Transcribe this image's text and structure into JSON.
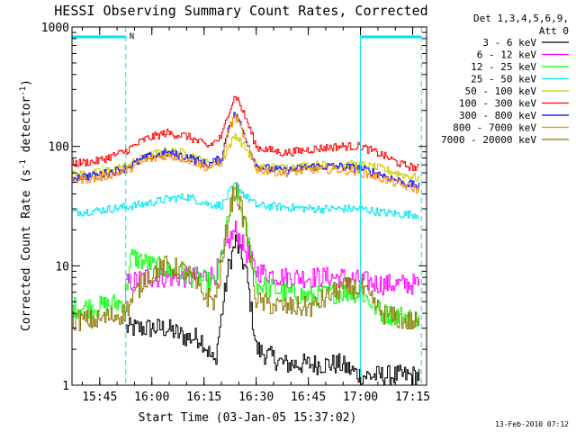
{
  "chart_data": {
    "type": "line",
    "title": "HESSI Observing Summary Count Rates, Corrected",
    "xlabel": "Start Time (03-Jan-05 15:37:02)",
    "ylabel_main": "Corrected Count Rate (s",
    "ylabel_sup1": "-1",
    "ylabel_mid": " detector",
    "ylabel_sup2": "-1",
    "ylabel_end": ")",
    "y_scale": "log",
    "ylim": [
      1,
      1000
    ],
    "xlim": [
      "15:37:02",
      "17:19:00"
    ],
    "x_ticks": [
      "15:45",
      "16:00",
      "16:15",
      "16:30",
      "16:45",
      "17:00",
      "17:15"
    ],
    "y_ticks": [
      "1",
      "10",
      "100",
      "1000"
    ],
    "legend_header": [
      "Det 1,3,4,5,6,9,",
      "Att 0"
    ],
    "legend_position": "right-outside",
    "footer_date": "13-Feb-2010 07:12",
    "night_marker_label": "N",
    "attenuator_bars": [
      [
        "15:37:02",
        "15:52:30"
      ],
      [
        "17:00:00",
        "17:17:30"
      ]
    ],
    "solid_vertical_lines": [
      "17:00:00"
    ],
    "dashed_vertical_lines": [
      "15:52:30",
      "17:17:30"
    ],
    "colors": {
      "axis": "#000000",
      "markers": "#00e5ee"
    },
    "series": [
      {
        "name": "3 - 6 keV",
        "color": "#000000",
        "x": [
          "15:52:30",
          "15:58",
          "16:04",
          "16:10",
          "16:14",
          "16:18",
          "16:20",
          "16:22",
          "16:24",
          "16:27",
          "16:30",
          "16:38",
          "16:46",
          "16:54",
          "17:00",
          "17:06",
          "17:12",
          "17:17"
        ],
        "values": [
          3,
          3,
          3,
          2.5,
          2.5,
          1.5,
          4,
          10,
          16,
          9,
          2,
          1.5,
          1.5,
          1.5,
          1.2,
          1.2,
          1.2,
          1.2
        ]
      },
      {
        "name": "6 - 12 keV",
        "color": "#ff00ff",
        "x": [
          "15:52:30",
          "15:58",
          "16:04",
          "16:10",
          "16:14",
          "16:18",
          "16:20",
          "16:22",
          "16:24",
          "16:27",
          "16:30",
          "16:38",
          "16:46",
          "16:54",
          "17:00",
          "17:06",
          "17:12",
          "17:17"
        ],
        "values": [
          7,
          8,
          8,
          8,
          8,
          8.5,
          11,
          16,
          20,
          13,
          9,
          8,
          8,
          8,
          7.5,
          7,
          7,
          7
        ]
      },
      {
        "name": "12 - 25 keV",
        "color": "#00ff00",
        "x": [
          "15:37:02",
          "15:44",
          "15:52",
          "15:54",
          "16:00",
          "16:06",
          "16:12",
          "16:18",
          "16:20",
          "16:22",
          "16:24",
          "16:27",
          "16:30",
          "16:38",
          "16:46",
          "16:54",
          "17:00",
          "17:06",
          "17:12",
          "17:17"
        ],
        "values": [
          4.5,
          4.5,
          5,
          12,
          10,
          9,
          8,
          7,
          12,
          26,
          45,
          20,
          7,
          6,
          5.5,
          6,
          6,
          4,
          3.8,
          3.5
        ]
      },
      {
        "name": "25 - 50 keV",
        "color": "#00e5ee",
        "x": [
          "15:37:02",
          "15:44",
          "15:52",
          "15:58",
          "16:04",
          "16:10",
          "16:16",
          "16:20",
          "16:22",
          "16:24",
          "16:27",
          "16:30",
          "16:38",
          "16:46",
          "16:54",
          "17:00",
          "17:06",
          "17:12",
          "17:17"
        ],
        "values": [
          28,
          29,
          31,
          33,
          36,
          38,
          33,
          32,
          40,
          48,
          38,
          32,
          31,
          30,
          30,
          30,
          28,
          27,
          27
        ]
      },
      {
        "name": "50 - 100 keV",
        "color": "#cccc00",
        "x": [
          "15:37:02",
          "15:44",
          "15:52",
          "15:58",
          "16:04",
          "16:10",
          "16:16",
          "16:20",
          "16:22",
          "16:24",
          "16:27",
          "16:30",
          "16:38",
          "16:46",
          "16:54",
          "17:00",
          "17:06",
          "17:12",
          "17:17"
        ],
        "values": [
          58,
          60,
          68,
          82,
          92,
          88,
          72,
          75,
          100,
          125,
          95,
          68,
          66,
          70,
          70,
          70,
          65,
          58,
          54
        ]
      },
      {
        "name": "100 - 300 keV",
        "color": "#ff0000",
        "x": [
          "15:37:02",
          "15:44",
          "15:52",
          "15:58",
          "16:04",
          "16:10",
          "16:16",
          "16:20",
          "16:22",
          "16:24",
          "16:27",
          "16:30",
          "16:38",
          "16:46",
          "16:54",
          "17:00",
          "17:06",
          "17:12",
          "17:17"
        ],
        "values": [
          72,
          75,
          90,
          115,
          130,
          122,
          100,
          120,
          200,
          270,
          170,
          98,
          88,
          95,
          100,
          100,
          85,
          70,
          65
        ]
      },
      {
        "name": "300 - 800 keV",
        "color": "#0000ff",
        "x": [
          "15:37:02",
          "15:44",
          "15:52",
          "15:58",
          "16:04",
          "16:10",
          "16:16",
          "16:20",
          "16:22",
          "16:24",
          "16:27",
          "16:30",
          "16:38",
          "16:46",
          "16:54",
          "17:00",
          "17:06",
          "17:12",
          "17:17"
        ],
        "values": [
          55,
          57,
          65,
          80,
          88,
          82,
          70,
          80,
          150,
          190,
          115,
          68,
          62,
          68,
          68,
          65,
          58,
          50,
          46
        ]
      },
      {
        "name": "800 - 7000 keV",
        "color": "#ff8c00",
        "x": [
          "15:37:02",
          "15:44",
          "15:52",
          "15:58",
          "16:04",
          "16:10",
          "16:16",
          "16:20",
          "16:22",
          "16:24",
          "16:27",
          "16:30",
          "16:38",
          "16:46",
          "16:54",
          "17:00",
          "17:06",
          "17:12",
          "17:17"
        ],
        "values": [
          52,
          54,
          62,
          76,
          84,
          78,
          66,
          74,
          140,
          180,
          108,
          64,
          60,
          64,
          64,
          60,
          54,
          47,
          43
        ]
      },
      {
        "name": "7000 - 20000 keV",
        "color": "#8b7500",
        "x": [
          "15:37:02",
          "15:44",
          "15:52",
          "15:58",
          "16:04",
          "16:10",
          "16:14",
          "16:18",
          "16:20",
          "16:22",
          "16:24",
          "16:27",
          "16:30",
          "16:38",
          "16:46",
          "16:54",
          "17:00",
          "17:06",
          "17:12",
          "17:17"
        ],
        "values": [
          3.5,
          3.5,
          4,
          8,
          10,
          9,
          6,
          5,
          10,
          28,
          45,
          20,
          5,
          4.5,
          4.5,
          6.5,
          6.5,
          4,
          3.5,
          3.3
        ]
      }
    ]
  }
}
